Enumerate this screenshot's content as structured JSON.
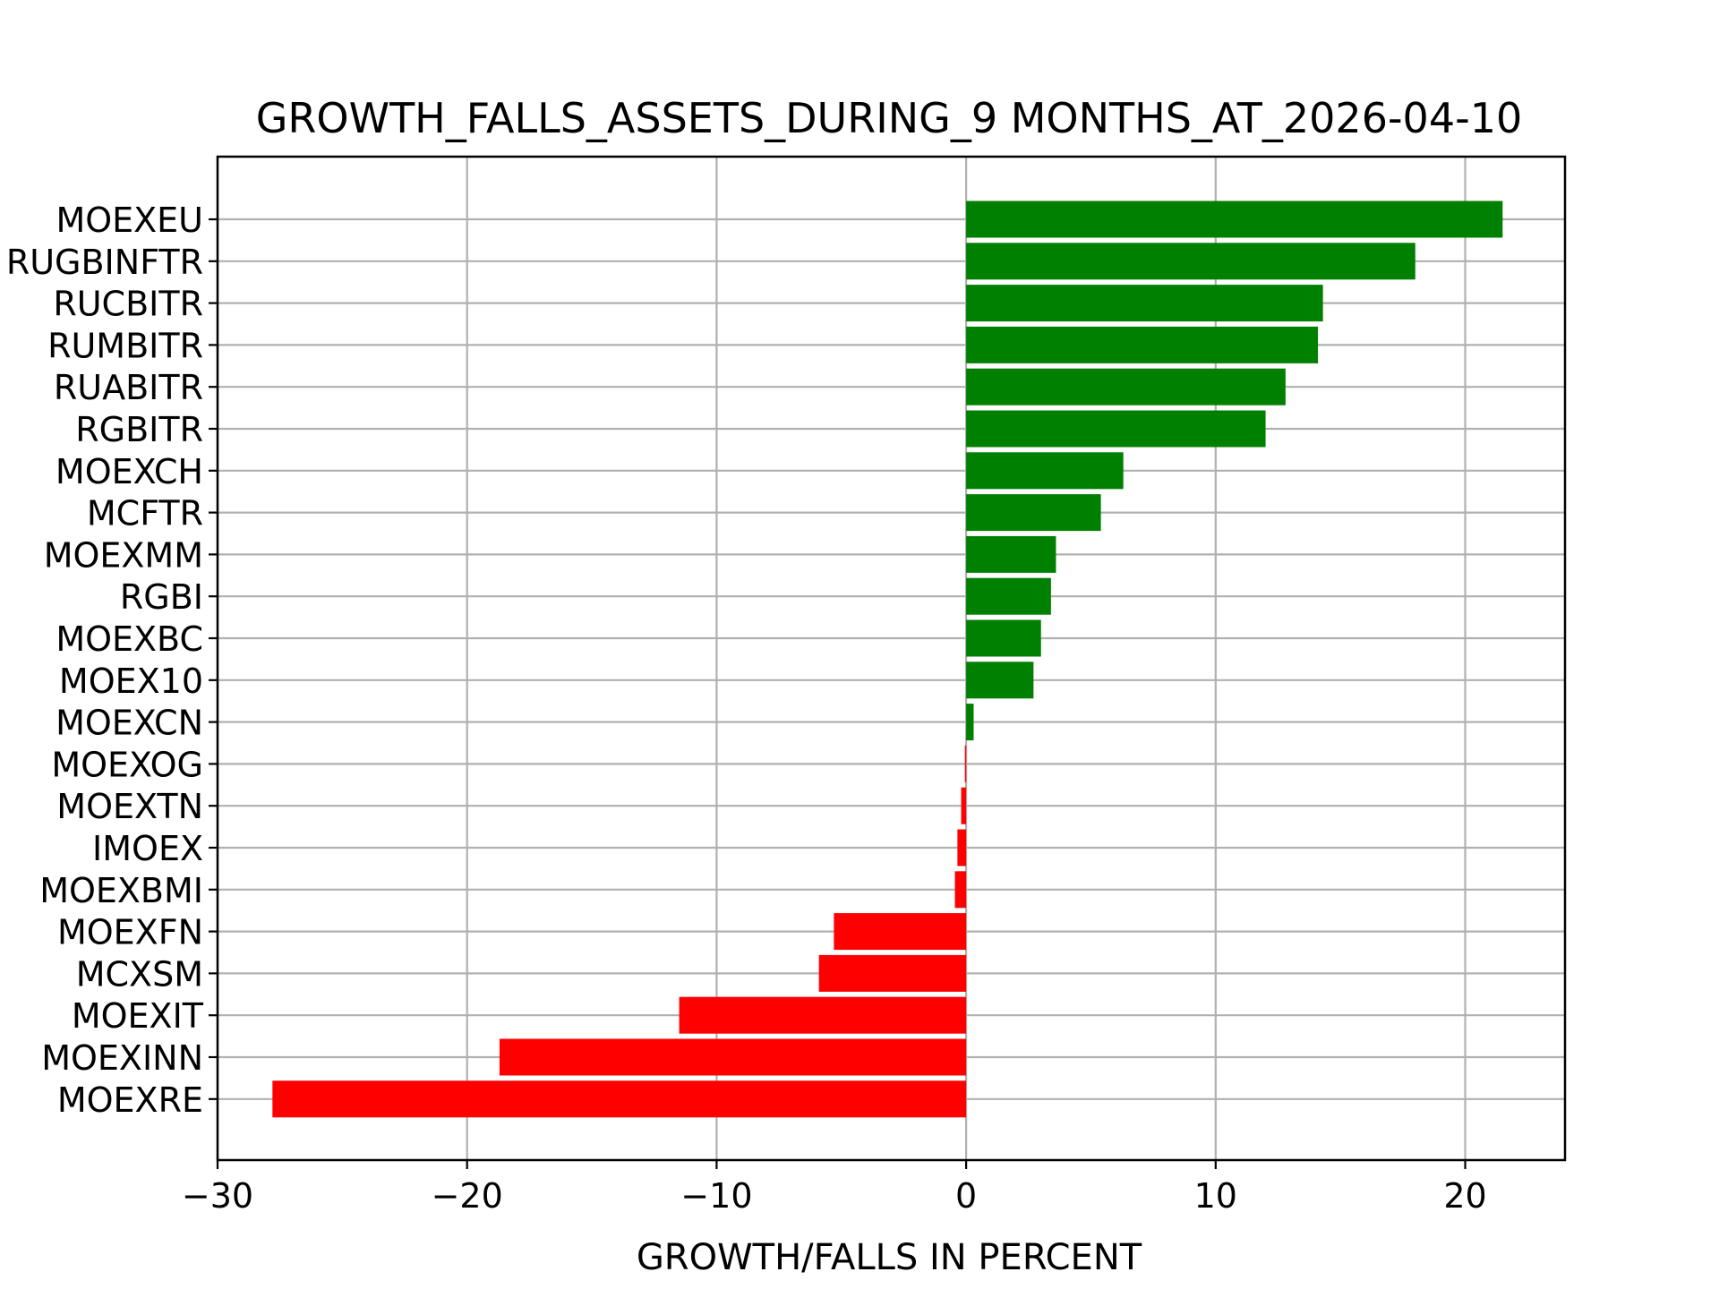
{
  "chart_data": {
    "type": "bar",
    "orientation": "horizontal",
    "title": "GROWTH_FALLS_ASSETS_DURING_9 MONTHS_AT_2026-04-10",
    "xlabel": "GROWTH/FALLS IN PERCENT",
    "ylabel": "",
    "xlim": [
      -30,
      24
    ],
    "x_ticks": [
      -30,
      -20,
      -10,
      0,
      10,
      20
    ],
    "x_tick_labels": [
      "−30",
      "−20",
      "−10",
      "0",
      "10",
      "20"
    ],
    "grid": true,
    "legend": "none",
    "positive_color": "#008000",
    "negative_color": "#ff0000",
    "categories": [
      "MOEXEU",
      "RUGBINFTR",
      "RUCBITR",
      "RUMBITR",
      "RUABITR",
      "RGBITR",
      "MOEXCH",
      "MCFTR",
      "MOEXMM",
      "RGBI",
      "MOEXBC",
      "MOEX10",
      "MOEXCN",
      "MOEXOG",
      "MOEXTN",
      "IMOEX",
      "MOEXBMI",
      "MOEXFN",
      "MCXSM",
      "MOEXIT",
      "MOEXINN",
      "MOEXRE"
    ],
    "values": [
      21.5,
      18.0,
      14.3,
      14.1,
      12.8,
      12.0,
      6.3,
      5.4,
      3.6,
      3.4,
      3.0,
      2.7,
      0.3,
      -0.05,
      -0.2,
      -0.35,
      -0.45,
      -5.3,
      -5.9,
      -11.5,
      -18.7,
      -27.8
    ]
  }
}
